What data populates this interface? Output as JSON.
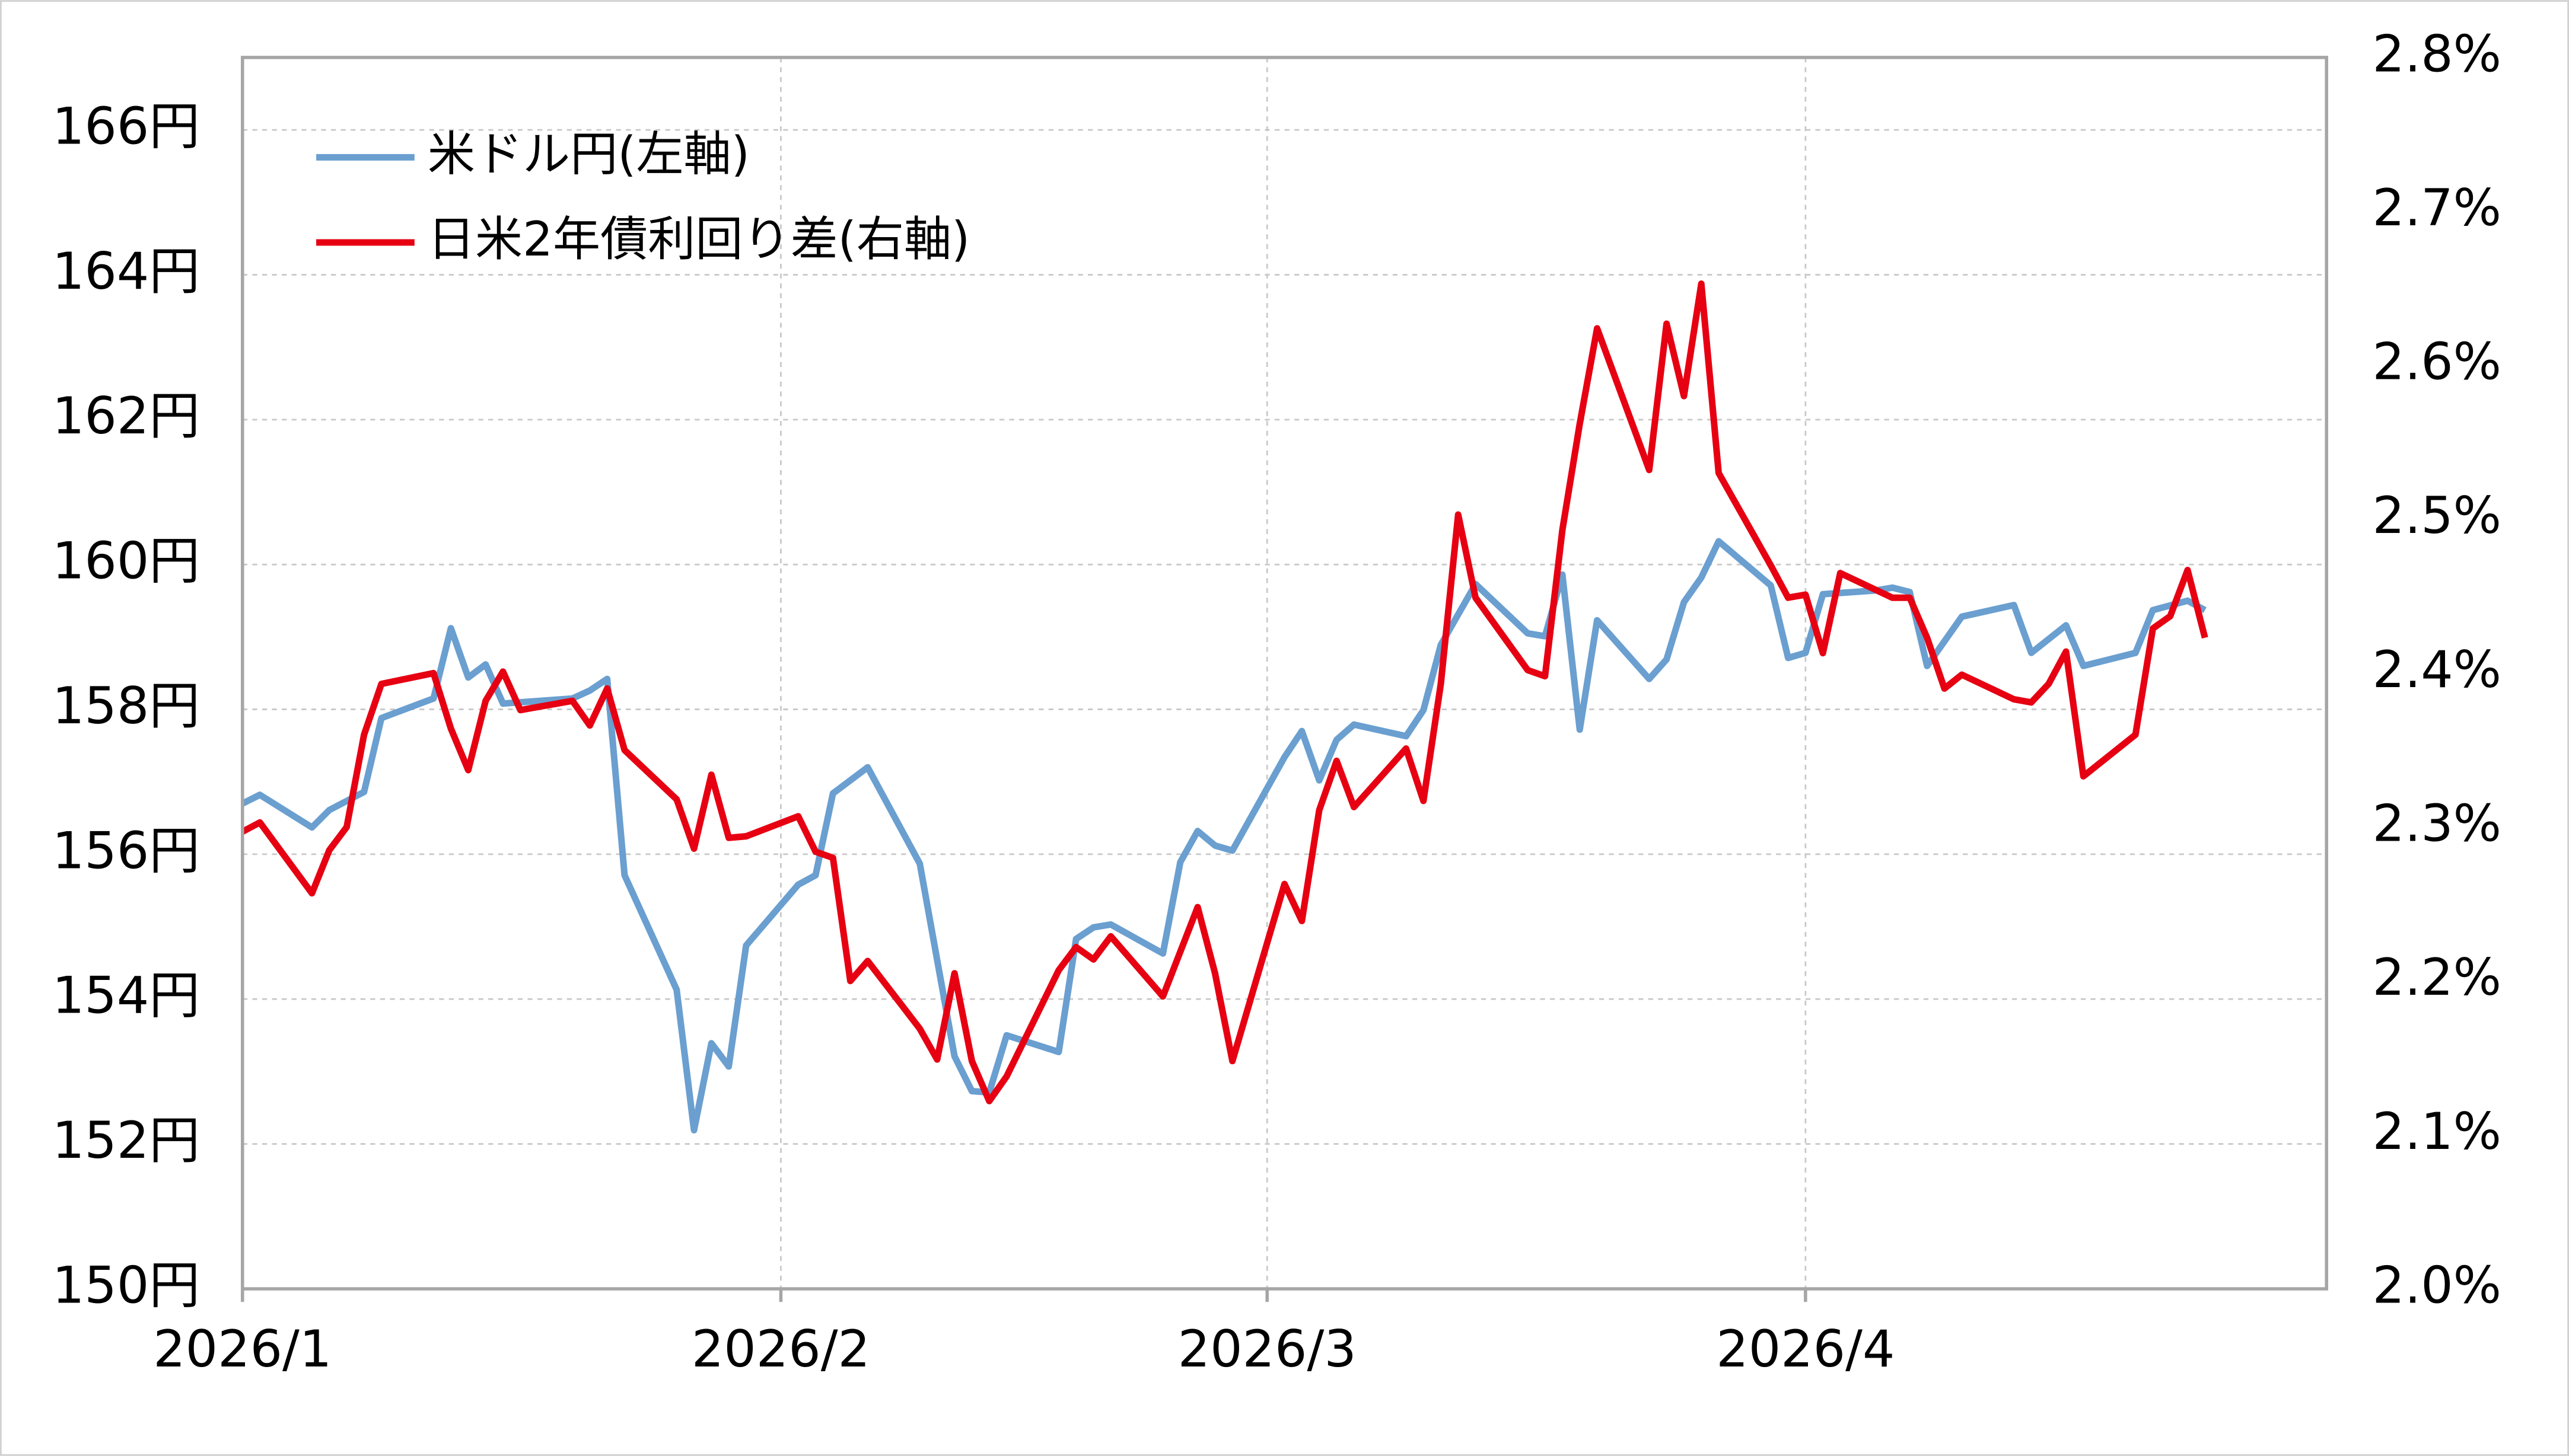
{
  "chart_data": {
    "type": "line",
    "xlim": [
      0,
      120
    ],
    "xticks": [
      {
        "value": 0,
        "label": "2026/1"
      },
      {
        "value": 31,
        "label": "2026/2"
      },
      {
        "value": 59,
        "label": "2026/3"
      },
      {
        "value": 90,
        "label": "2026/4"
      }
    ],
    "ylim": [
      150,
      167
    ],
    "yticks": [
      {
        "value": 150,
        "label": "150円"
      },
      {
        "value": 152,
        "label": "152円"
      },
      {
        "value": 154,
        "label": "154円"
      },
      {
        "value": 156,
        "label": "156円"
      },
      {
        "value": 158,
        "label": "158円"
      },
      {
        "value": 160,
        "label": "160円"
      },
      {
        "value": 162,
        "label": "162円"
      },
      {
        "value": 164,
        "label": "164円"
      },
      {
        "value": 166,
        "label": "166円"
      }
    ],
    "y2lim": [
      2.0,
      2.8
    ],
    "y2ticks": [
      {
        "value": 2.0,
        "label": "2.0%"
      },
      {
        "value": 2.1,
        "label": "2.1%"
      },
      {
        "value": 2.2,
        "label": "2.2%"
      },
      {
        "value": 2.3,
        "label": "2.3%"
      },
      {
        "value": 2.4,
        "label": "2.4%"
      },
      {
        "value": 2.5,
        "label": "2.5%"
      },
      {
        "value": 2.6,
        "label": "2.6%"
      },
      {
        "value": 2.7,
        "label": "2.7%"
      },
      {
        "value": 2.8,
        "label": "2.8%"
      }
    ],
    "grid": true,
    "legend": "upper left",
    "series": [
      {
        "name": "米ドル円(左軸)",
        "color": "#6a9fd0",
        "axis": "y",
        "x": [
          0,
          1,
          4,
          5,
          7,
          8,
          11,
          12,
          13,
          14,
          15,
          19,
          20,
          21,
          22,
          25,
          26,
          27,
          28,
          29,
          32,
          33,
          34,
          36,
          39,
          41,
          42,
          43,
          44,
          47,
          48,
          49,
          50,
          53,
          54,
          55,
          56,
          57,
          60,
          61,
          62,
          63,
          64,
          67,
          68,
          69,
          71,
          74,
          75,
          76,
          77,
          78,
          81,
          82,
          83,
          84,
          85,
          88,
          89,
          90,
          91,
          94,
          95,
          96,
          97,
          99,
          102,
          103,
          105,
          106,
          109,
          110,
          112,
          113
        ],
        "values": [
          156.7,
          156.82,
          156.37,
          156.61,
          156.86,
          157.88,
          158.15,
          159.12,
          158.44,
          158.62,
          158.08,
          158.15,
          158.26,
          158.42,
          155.71,
          154.13,
          152.19,
          153.39,
          153.07,
          154.74,
          155.58,
          155.71,
          156.84,
          157.2,
          155.87,
          153.21,
          152.73,
          152.71,
          153.5,
          153.27,
          154.83,
          154.99,
          155.03,
          154.63,
          155.89,
          156.32,
          156.12,
          156.05,
          157.34,
          157.7,
          157.02,
          157.58,
          157.79,
          157.63,
          157.99,
          158.89,
          159.73,
          159.05,
          159.01,
          159.86,
          157.72,
          159.23,
          158.42,
          158.69,
          159.48,
          159.82,
          160.32,
          159.71,
          158.71,
          158.78,
          159.59,
          159.64,
          159.68,
          159.62,
          158.6,
          159.28,
          159.44,
          158.78,
          159.16,
          158.6,
          158.78,
          159.37,
          159.5,
          159.37
        ]
      },
      {
        "name": "日米2年債利回り差(右軸)",
        "color": "#e60012",
        "axis": "y2",
        "x": [
          0,
          1,
          4,
          5,
          6,
          7,
          8,
          11,
          12,
          13,
          14,
          15,
          16,
          19,
          20,
          21,
          22,
          25,
          26,
          27,
          28,
          29,
          32,
          33,
          34,
          35,
          36,
          39,
          40,
          41,
          42,
          43,
          44,
          47,
          48,
          49,
          50,
          53,
          55,
          56,
          57,
          60,
          61,
          62,
          63,
          64,
          67,
          68,
          69,
          70,
          71,
          74,
          75,
          76,
          77,
          78,
          81,
          82,
          83,
          84,
          85,
          88,
          89,
          90,
          91,
          92,
          95,
          96,
          97,
          98,
          99,
          102,
          103,
          104,
          105,
          106,
          109,
          110,
          111,
          112,
          113
        ],
        "values": [
          2.297,
          2.303,
          2.257,
          2.285,
          2.3,
          2.36,
          2.393,
          2.4,
          2.364,
          2.337,
          2.382,
          2.401,
          2.376,
          2.382,
          2.366,
          2.39,
          2.35,
          2.318,
          2.286,
          2.334,
          2.293,
          2.294,
          2.307,
          2.284,
          2.28,
          2.2,
          2.213,
          2.169,
          2.149,
          2.205,
          2.148,
          2.122,
          2.138,
          2.207,
          2.222,
          2.214,
          2.229,
          2.19,
          2.248,
          2.205,
          2.148,
          2.263,
          2.239,
          2.311,
          2.343,
          2.313,
          2.351,
          2.317,
          2.393,
          2.503,
          2.449,
          2.402,
          2.398,
          2.493,
          2.562,
          2.624,
          2.532,
          2.627,
          2.58,
          2.653,
          2.53,
          2.47,
          2.449,
          2.451,
          2.413,
          2.465,
          2.449,
          2.449,
          2.423,
          2.39,
          2.399,
          2.383,
          2.381,
          2.393,
          2.414,
          2.333,
          2.36,
          2.429,
          2.437,
          2.467,
          2.423
        ]
      }
    ]
  }
}
